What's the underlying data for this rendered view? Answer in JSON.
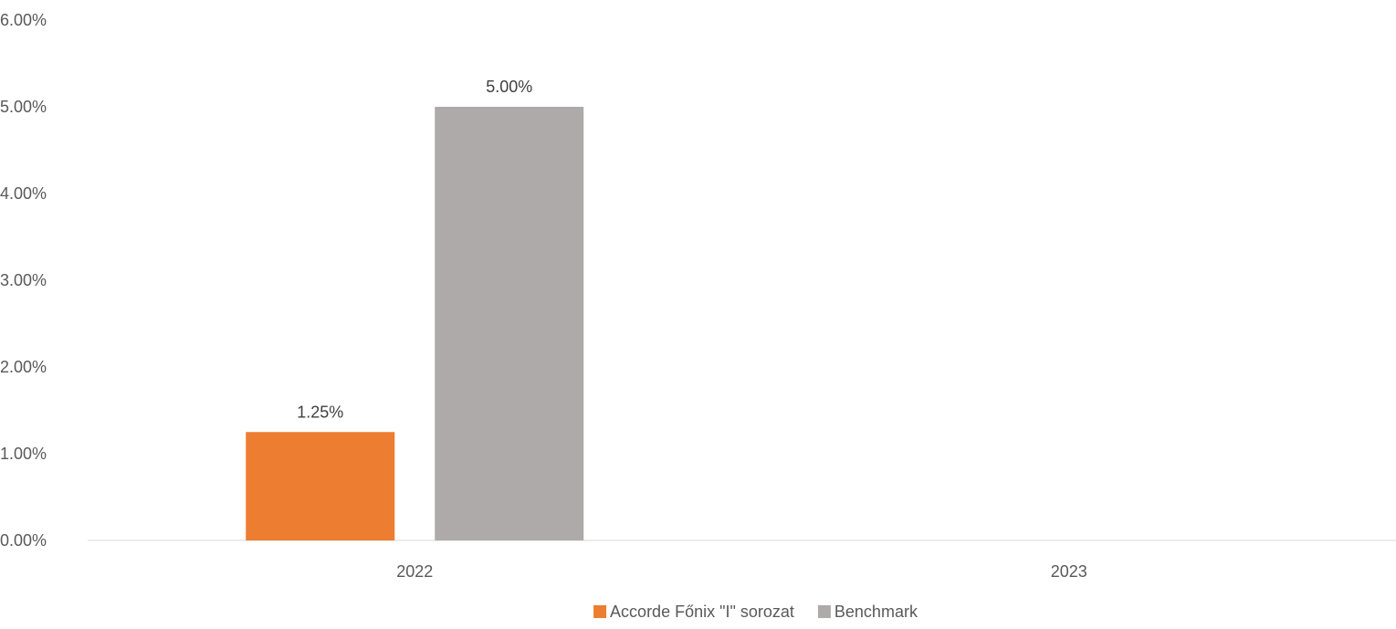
{
  "chart_data": {
    "type": "bar",
    "title": "",
    "xlabel": "",
    "ylabel": "",
    "categories": [
      "2022",
      "2023"
    ],
    "series": [
      {
        "name": "Accorde Főnix \"I\" sorozat",
        "color": "#ED7D31",
        "values": [
          1.25,
          null
        ],
        "labels": [
          "1.25%",
          ""
        ]
      },
      {
        "name": "Benchmark",
        "color": "#ADAAA9",
        "values": [
          5.0,
          null
        ],
        "labels": [
          "5.00%",
          ""
        ]
      }
    ],
    "ylim": [
      0,
      6
    ],
    "yticks": [
      0,
      1,
      2,
      3,
      4,
      5,
      6
    ],
    "ytick_labels": [
      "0.00%",
      "1.00%",
      "2.00%",
      "3.00%",
      "4.00%",
      "5.00%",
      "6.00%"
    ],
    "grid": false,
    "legend_position": "bottom",
    "axis_color": "#D9D9D9"
  }
}
